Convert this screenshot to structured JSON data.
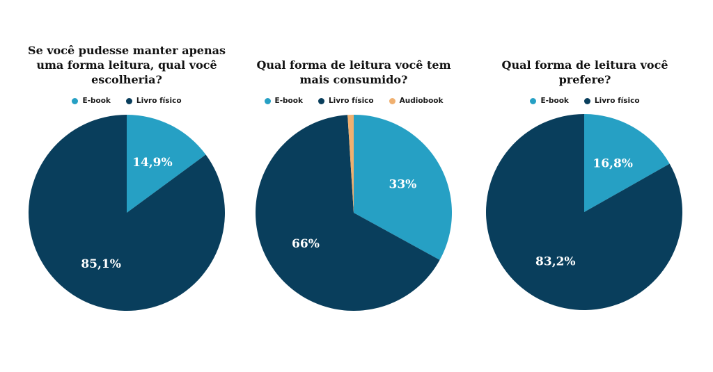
{
  "colors": {
    "ebook": "#26a0c4",
    "livro": "#093e5c",
    "audio": "#f0b070"
  },
  "chart_data": [
    {
      "type": "pie",
      "title": "Se você pudesse manter apenas uma forma leitura, qual você escolheria?",
      "title_lines": [
        "Se você pudesse manter apenas",
        "uma forma leitura, qual você",
        "escolheria?"
      ],
      "legend": [
        "E-book",
        "Livro físico"
      ],
      "slices": [
        {
          "name": "E-book",
          "value": 14.9,
          "label": "14,9%",
          "color": "#26a0c4"
        },
        {
          "name": "Livro físico",
          "value": 85.1,
          "label": "85,1%",
          "color": "#093e5c"
        }
      ]
    },
    {
      "type": "pie",
      "title": "Qual forma de leitura você tem mais consumido?",
      "title_lines": [
        "Qual forma de leitura você tem",
        "mais consumido?"
      ],
      "legend": [
        "E-book",
        "Livro físico",
        "Audiobook"
      ],
      "slices": [
        {
          "name": "E-book",
          "value": 33,
          "label": "33%",
          "color": "#26a0c4"
        },
        {
          "name": "Livro físico",
          "value": 66,
          "label": "66%",
          "color": "#093e5c"
        },
        {
          "name": "Audiobook",
          "value": 1,
          "label": "",
          "color": "#f0b070"
        }
      ]
    },
    {
      "type": "pie",
      "title": "Qual forma de leitura você prefere?",
      "title_lines": [
        "Qual forma de leitura você",
        "prefere?"
      ],
      "legend": [
        "E-book",
        "Livro físico"
      ],
      "slices": [
        {
          "name": "E-book",
          "value": 16.8,
          "label": "16,8%",
          "color": "#26a0c4"
        },
        {
          "name": "Livro físico",
          "value": 83.2,
          "label": "83,2%",
          "color": "#093e5c"
        }
      ]
    }
  ]
}
